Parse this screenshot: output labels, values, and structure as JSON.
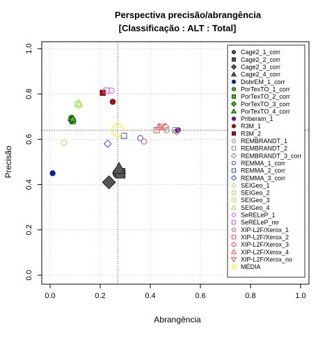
{
  "chart_data": {
    "type": "scatter",
    "title": "Perspectiva precisão/abrangência",
    "subtitle": "[Classificação : ALT : Total]",
    "xlabel": "Abrangência",
    "ylabel": "Precisão",
    "xlim": [
      0,
      1
    ],
    "ylim": [
      0,
      1
    ],
    "xticks": [
      "0.0",
      "0.2",
      "0.4",
      "0.6",
      "0.8",
      "1.0"
    ],
    "yticks": [
      "0.0",
      "0.2",
      "0.4",
      "0.6",
      "0.8",
      "1.0"
    ],
    "grid": true,
    "legend_position": "right",
    "reference_lines": {
      "x": 0.27,
      "y": 0.64
    },
    "series": [
      {
        "name": "Cage2_1_corr",
        "color": "#555555",
        "marker": "circle",
        "filled": true,
        "points": [
          [
            0.27,
            0.45
          ]
        ]
      },
      {
        "name": "Cage2_2_corr",
        "color": "#555555",
        "marker": "square",
        "filled": true,
        "points": [
          [
            0.28,
            0.45
          ]
        ]
      },
      {
        "name": "Cage2_3_corr",
        "color": "#555555",
        "marker": "diamond",
        "filled": true,
        "points": [
          [
            0.235,
            0.41
          ]
        ]
      },
      {
        "name": "Cage2_4_corr",
        "color": "#555555",
        "marker": "triangle",
        "filled": true,
        "points": [
          [
            0.275,
            0.47
          ]
        ]
      },
      {
        "name": "DobrEM_1_corr",
        "color": "#0022cc",
        "marker": "circle",
        "filled": true,
        "points": [
          [
            0.01,
            0.45
          ]
        ]
      },
      {
        "name": "PorTexTO_1_corr",
        "color": "#33cc00",
        "marker": "circle",
        "filled": true,
        "points": [
          [
            0.085,
            0.695
          ]
        ]
      },
      {
        "name": "PorTexTO_2_corr",
        "color": "#33cc00",
        "marker": "square",
        "filled": true,
        "points": [
          [
            0.09,
            0.68
          ]
        ]
      },
      {
        "name": "PorTexTO_3_corr",
        "color": "#33cc00",
        "marker": "diamond",
        "filled": true,
        "points": [
          [
            0.085,
            0.685
          ]
        ]
      },
      {
        "name": "PorTexTO_4_corr",
        "color": "#33cc00",
        "marker": "triangle",
        "filled": true,
        "points": [
          [
            0.09,
            0.69
          ]
        ]
      },
      {
        "name": "Priberam_1",
        "color": "#9900cc",
        "marker": "circle",
        "filled": true,
        "points": [
          [
            0.51,
            0.64
          ]
        ]
      },
      {
        "name": "R3M_1",
        "color": "#cc0000",
        "marker": "circle",
        "filled": true,
        "points": [
          [
            0.25,
            0.765
          ]
        ]
      },
      {
        "name": "R3M_2",
        "color": "#cc0000",
        "marker": "square",
        "filled": true,
        "points": [
          [
            0.21,
            0.805
          ]
        ]
      },
      {
        "name": "REMBRANDT_1",
        "color": "#888888",
        "marker": "circle",
        "filled": false,
        "points": [
          [
            0.465,
            0.64
          ]
        ]
      },
      {
        "name": "REMBRANDT_2",
        "color": "#888888",
        "marker": "square",
        "filled": false,
        "points": [
          [
            0.5,
            0.64
          ]
        ]
      },
      {
        "name": "REMBRANDT_3_corr",
        "color": "#888888",
        "marker": "diamond",
        "filled": false,
        "points": [
          [
            0.505,
            0.635
          ]
        ]
      },
      {
        "name": "REMMA_1_corr",
        "color": "#3355ff",
        "marker": "circle",
        "filled": false,
        "points": [
          [
            0.36,
            0.605
          ]
        ]
      },
      {
        "name": "REMMA_2_corr",
        "color": "#3355ff",
        "marker": "square",
        "filled": false,
        "points": [
          [
            0.295,
            0.615
          ]
        ]
      },
      {
        "name": "REMMA_3_corr",
        "color": "#3355ff",
        "marker": "diamond",
        "filled": false,
        "points": [
          [
            0.23,
            0.58
          ]
        ]
      },
      {
        "name": "SEIGeo_1",
        "color": "#99ee55",
        "marker": "circle",
        "filled": false,
        "points": [
          [
            0.055,
            0.585
          ]
        ]
      },
      {
        "name": "SEIGeo_2",
        "color": "#99ee55",
        "marker": "square",
        "filled": false,
        "points": [
          [
            0.11,
            0.755
          ]
        ]
      },
      {
        "name": "SEIGeo_3",
        "color": "#99ee55",
        "marker": "diamond",
        "filled": false,
        "points": [
          [
            0.115,
            0.75
          ]
        ]
      },
      {
        "name": "SEIGeo_4",
        "color": "#99ee55",
        "marker": "triangle",
        "filled": false,
        "points": [
          [
            0.115,
            0.76
          ]
        ]
      },
      {
        "name": "SeRELeP_1",
        "color": "#ee55ee",
        "marker": "circle",
        "filled": false,
        "points": [
          [
            0.245,
            0.815
          ]
        ]
      },
      {
        "name": "SeRELeP_no",
        "color": "#ee55ee",
        "marker": "square",
        "filled": false,
        "points": [
          [
            0.225,
            0.815
          ]
        ]
      },
      {
        "name": "XIP-L2F/Xerox_1",
        "color": "#ee5555",
        "marker": "circle",
        "filled": false,
        "points": [
          [
            0.375,
            0.59
          ]
        ]
      },
      {
        "name": "XIP-L2F/Xerox_2",
        "color": "#ee5555",
        "marker": "square",
        "filled": false,
        "points": [
          [
            0.425,
            0.64
          ]
        ]
      },
      {
        "name": "XIP-L2F/Xerox_3",
        "color": "#ee5555",
        "marker": "diamond",
        "filled": false,
        "points": [
          [
            0.46,
            0.655
          ]
        ]
      },
      {
        "name": "XIP-L2F/Xerox_4",
        "color": "#ee5555",
        "marker": "triangle",
        "filled": false,
        "points": [
          [
            0.435,
            0.655
          ]
        ]
      },
      {
        "name": "XIP-L2F/Xerox_no",
        "color": "#ee5555",
        "marker": "invtriangle",
        "filled": false,
        "points": [
          [
            0.445,
            0.655
          ]
        ]
      },
      {
        "name": "MÉDIA",
        "color": "#ffee00",
        "marker": "diamond",
        "filled": false,
        "size": 1.8,
        "points": [
          [
            0.27,
            0.64
          ]
        ]
      }
    ]
  }
}
